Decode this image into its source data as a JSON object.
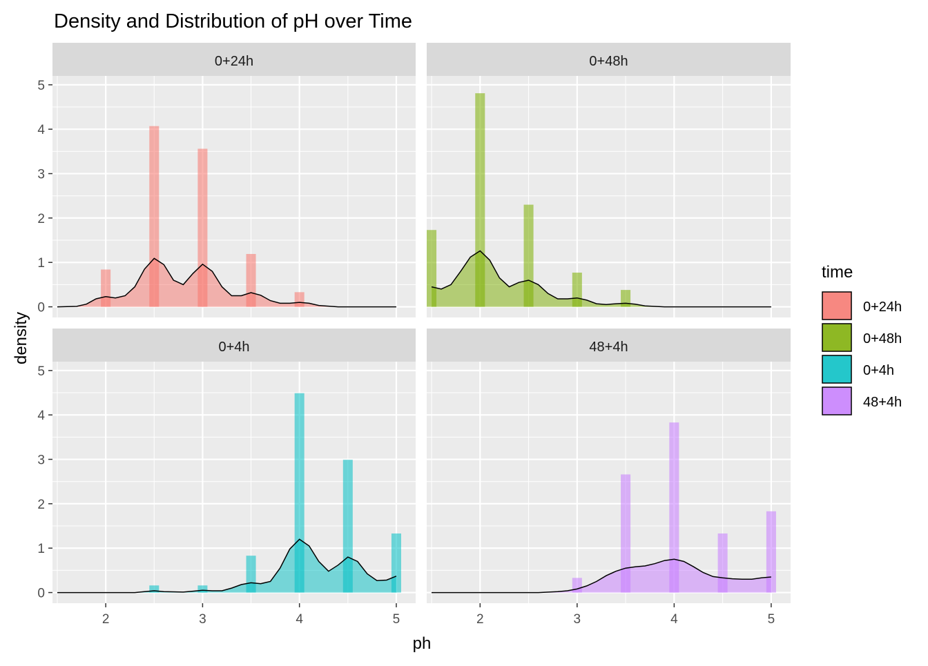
{
  "chart_data": {
    "type": "histogram+density",
    "title": "Density and Distribution of pH over Time",
    "xlabel": "ph",
    "ylabel": "density",
    "xlim": [
      1.45,
      5.2
    ],
    "ylim": [
      -0.24,
      5.2
    ],
    "x_ticks": [
      2,
      3,
      4,
      5
    ],
    "y_ticks": [
      0,
      1,
      2,
      3,
      4,
      5
    ],
    "grid": true,
    "legend": {
      "title": "time",
      "position": "right",
      "entries": [
        {
          "label": "0+24h",
          "color": "#F8766D"
        },
        {
          "label": "0+48h",
          "color": "#7CAE00"
        },
        {
          "label": "0+4h",
          "color": "#00BFC4"
        },
        {
          "label": "48+4h",
          "color": "#C77CFF"
        }
      ]
    },
    "bin_width": 0.1,
    "panels": [
      {
        "label": "0+24h",
        "color": "#F8766D",
        "bars": [
          {
            "x": 2.0,
            "y": 0.84
          },
          {
            "x": 2.5,
            "y": 4.07
          },
          {
            "x": 3.0,
            "y": 3.56
          },
          {
            "x": 3.5,
            "y": 1.19
          },
          {
            "x": 4.0,
            "y": 0.33
          }
        ],
        "density": [
          [
            1.5,
            0
          ],
          [
            1.7,
            0.01
          ],
          [
            1.8,
            0.06
          ],
          [
            1.9,
            0.18
          ],
          [
            2.0,
            0.23
          ],
          [
            2.1,
            0.2
          ],
          [
            2.2,
            0.25
          ],
          [
            2.3,
            0.45
          ],
          [
            2.4,
            0.85
          ],
          [
            2.5,
            1.09
          ],
          [
            2.6,
            0.95
          ],
          [
            2.7,
            0.6
          ],
          [
            2.8,
            0.5
          ],
          [
            2.9,
            0.75
          ],
          [
            3.0,
            0.96
          ],
          [
            3.1,
            0.8
          ],
          [
            3.2,
            0.45
          ],
          [
            3.3,
            0.25
          ],
          [
            3.4,
            0.25
          ],
          [
            3.5,
            0.32
          ],
          [
            3.6,
            0.26
          ],
          [
            3.7,
            0.14
          ],
          [
            3.8,
            0.08
          ],
          [
            3.9,
            0.08
          ],
          [
            4.0,
            0.1
          ],
          [
            4.1,
            0.08
          ],
          [
            4.2,
            0.03
          ],
          [
            4.4,
            0.0
          ],
          [
            5.0,
            0.0
          ]
        ]
      },
      {
        "label": "0+48h",
        "color": "#7CAE00",
        "bars": [
          {
            "x": 1.5,
            "y": 1.73
          },
          {
            "x": 2.0,
            "y": 4.81
          },
          {
            "x": 2.5,
            "y": 2.3
          },
          {
            "x": 3.0,
            "y": 0.77
          },
          {
            "x": 3.5,
            "y": 0.38
          }
        ],
        "density": [
          [
            1.5,
            0.45
          ],
          [
            1.6,
            0.4
          ],
          [
            1.7,
            0.5
          ],
          [
            1.8,
            0.8
          ],
          [
            1.9,
            1.12
          ],
          [
            2.0,
            1.26
          ],
          [
            2.1,
            1.05
          ],
          [
            2.2,
            0.65
          ],
          [
            2.3,
            0.45
          ],
          [
            2.4,
            0.55
          ],
          [
            2.5,
            0.6
          ],
          [
            2.6,
            0.5
          ],
          [
            2.7,
            0.3
          ],
          [
            2.8,
            0.18
          ],
          [
            2.9,
            0.18
          ],
          [
            3.0,
            0.2
          ],
          [
            3.1,
            0.15
          ],
          [
            3.2,
            0.07
          ],
          [
            3.3,
            0.05
          ],
          [
            3.4,
            0.07
          ],
          [
            3.5,
            0.08
          ],
          [
            3.6,
            0.06
          ],
          [
            3.7,
            0.02
          ],
          [
            3.9,
            0.0
          ],
          [
            5.0,
            0.0
          ]
        ]
      },
      {
        "label": "0+4h",
        "color": "#00BFC4",
        "bars": [
          {
            "x": 2.5,
            "y": 0.16
          },
          {
            "x": 3.0,
            "y": 0.16
          },
          {
            "x": 3.5,
            "y": 0.83
          },
          {
            "x": 4.0,
            "y": 4.49
          },
          {
            "x": 4.5,
            "y": 2.99
          },
          {
            "x": 5.0,
            "y": 1.33
          }
        ],
        "density": [
          [
            1.5,
            0
          ],
          [
            2.3,
            0.0
          ],
          [
            2.4,
            0.02
          ],
          [
            2.5,
            0.04
          ],
          [
            2.6,
            0.02
          ],
          [
            2.8,
            0.01
          ],
          [
            2.9,
            0.03
          ],
          [
            3.0,
            0.05
          ],
          [
            3.1,
            0.04
          ],
          [
            3.2,
            0.04
          ],
          [
            3.3,
            0.1
          ],
          [
            3.4,
            0.18
          ],
          [
            3.5,
            0.22
          ],
          [
            3.6,
            0.2
          ],
          [
            3.7,
            0.25
          ],
          [
            3.8,
            0.55
          ],
          [
            3.9,
            0.98
          ],
          [
            4.0,
            1.2
          ],
          [
            4.1,
            1.05
          ],
          [
            4.2,
            0.7
          ],
          [
            4.3,
            0.48
          ],
          [
            4.4,
            0.62
          ],
          [
            4.5,
            0.8
          ],
          [
            4.6,
            0.7
          ],
          [
            4.7,
            0.42
          ],
          [
            4.8,
            0.27
          ],
          [
            4.9,
            0.28
          ],
          [
            5.0,
            0.37
          ]
        ]
      },
      {
        "label": "48+4h",
        "color": "#C77CFF",
        "bars": [
          {
            "x": 3.0,
            "y": 0.33
          },
          {
            "x": 3.5,
            "y": 2.66
          },
          {
            "x": 4.0,
            "y": 3.83
          },
          {
            "x": 4.5,
            "y": 1.33
          },
          {
            "x": 5.0,
            "y": 1.83
          }
        ],
        "density": [
          [
            1.5,
            0
          ],
          [
            2.6,
            0.0
          ],
          [
            2.8,
            0.02
          ],
          [
            2.9,
            0.04
          ],
          [
            3.0,
            0.08
          ],
          [
            3.1,
            0.15
          ],
          [
            3.2,
            0.25
          ],
          [
            3.3,
            0.38
          ],
          [
            3.4,
            0.48
          ],
          [
            3.5,
            0.55
          ],
          [
            3.6,
            0.58
          ],
          [
            3.7,
            0.6
          ],
          [
            3.8,
            0.65
          ],
          [
            3.9,
            0.72
          ],
          [
            4.0,
            0.75
          ],
          [
            4.1,
            0.7
          ],
          [
            4.2,
            0.58
          ],
          [
            4.3,
            0.45
          ],
          [
            4.4,
            0.36
          ],
          [
            4.5,
            0.33
          ],
          [
            4.6,
            0.31
          ],
          [
            4.7,
            0.3
          ],
          [
            4.8,
            0.3
          ],
          [
            4.9,
            0.33
          ],
          [
            5.0,
            0.35
          ]
        ]
      }
    ]
  }
}
